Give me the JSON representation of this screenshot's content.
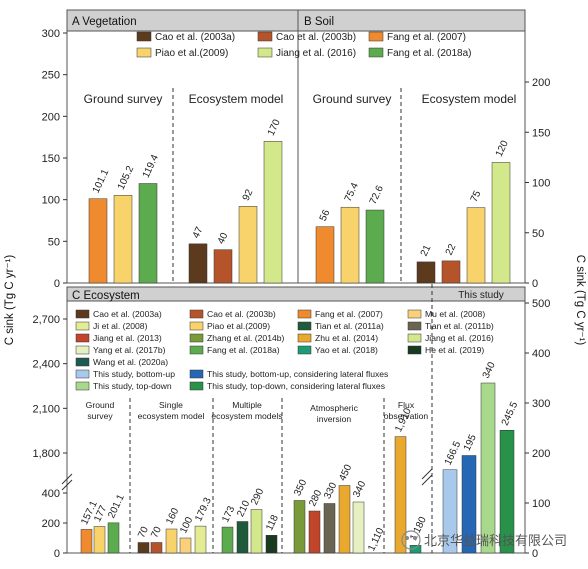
{
  "chart_data": [
    {
      "panel": "A Vegetation",
      "type": "bar",
      "ylabel": "C sink (Tg C yr⁻¹)",
      "ylim": [
        0,
        300
      ],
      "yticks": [
        0,
        50,
        100,
        150,
        200,
        250,
        300
      ],
      "groups": [
        "Ground survey",
        "Ecosystem model"
      ],
      "bars": [
        {
          "group": "Ground survey",
          "series": "Fang et al. (2007)",
          "value": 101.1,
          "label": "101.1"
        },
        {
          "group": "Ground survey",
          "series": "Piao et al.(2009)",
          "value": 105.2,
          "label": "105.2"
        },
        {
          "group": "Ground survey",
          "series": "Fang et al. (2018a)",
          "value": 119.4,
          "label": "119.4"
        },
        {
          "group": "Ecosystem model",
          "series": "Cao et al. (2003a)",
          "value": 47,
          "label": "47"
        },
        {
          "group": "Ecosystem model",
          "series": "Cao et al. (2003b)",
          "value": 40,
          "label": "40"
        },
        {
          "group": "Ecosystem model",
          "series": "Piao et al.(2009)",
          "value": 92,
          "label": "92"
        },
        {
          "group": "Ecosystem model",
          "series": "Jiang et al. (2016)",
          "value": 170,
          "label": "170"
        }
      ]
    },
    {
      "panel": "B Soil",
      "type": "bar",
      "ylabel": "C sink (Tg C yr⁻¹)",
      "ylim": [
        0,
        200
      ],
      "yticks": [
        0,
        50,
        100,
        150,
        200
      ],
      "groups": [
        "Ground survey",
        "Ecosystem model"
      ],
      "bars": [
        {
          "group": "Ground survey",
          "series": "Fang et al. (2007)",
          "value": 56,
          "label": "56"
        },
        {
          "group": "Ground survey",
          "series": "Piao et al.(2009)",
          "value": 75.4,
          "label": "75.4"
        },
        {
          "group": "Ground survey",
          "series": "Fang et al. (2018a)",
          "value": 72.6,
          "label": "72.6"
        },
        {
          "group": "Ecosystem model",
          "series": "Cao et al. (2003a)",
          "value": 21,
          "label": "21"
        },
        {
          "group": "Ecosystem model",
          "series": "Cao et al. (2003b)",
          "value": 22,
          "label": "22"
        },
        {
          "group": "Ecosystem model",
          "series": "Piao et al.(2009)",
          "value": 75,
          "label": "75"
        },
        {
          "group": "Ecosystem model",
          "series": "Jiang et al. (2016)",
          "value": 120,
          "label": "120"
        }
      ]
    },
    {
      "panel": "C Ecosystem",
      "type": "bar",
      "ylabel": "C sink (Tg C yr⁻¹)",
      "yticks_left": [
        0,
        200,
        400,
        1800,
        2100,
        2400,
        2700
      ],
      "yticks_right": [
        0,
        100,
        200,
        300,
        400,
        500
      ],
      "axis_break": [
        500,
        1600
      ],
      "groups": [
        "Ground survey",
        "Single ecosystem model",
        "Multiple ecosystem models",
        "Atmospheric inversion",
        "Flux observation",
        "This study"
      ],
      "bars": [
        {
          "group": "Ground survey",
          "series": "Fang et al. (2007)",
          "value": 157.1,
          "label": "157.1"
        },
        {
          "group": "Ground survey",
          "series": "Piao et al.(2009)",
          "value": 177,
          "label": "177"
        },
        {
          "group": "Ground survey",
          "series": "Fang et al. (2018a)",
          "value": 201.1,
          "label": "201.1"
        },
        {
          "group": "Single ecosystem model",
          "series": "Cao et al. (2003a)",
          "value": 70,
          "label": "70"
        },
        {
          "group": "Single ecosystem model",
          "series": "Cao et al. (2003b)",
          "value": 70,
          "label": "70"
        },
        {
          "group": "Single ecosystem model",
          "series": "Piao et al.(2009)",
          "value": 160,
          "label": "160"
        },
        {
          "group": "Single ecosystem model",
          "series": "Mu et al. (2008)",
          "value": 100,
          "label": "100"
        },
        {
          "group": "Single ecosystem model",
          "series": "Ji et al. (2008)",
          "value": 179.3,
          "label": "179.3"
        },
        {
          "group": "Multiple ecosystem models",
          "series": "Fang et al. (2018a)",
          "value": 173,
          "label": "173"
        },
        {
          "group": "Multiple ecosystem models",
          "series": "Tian et al. (2011a)",
          "value": 210,
          "label": "210"
        },
        {
          "group": "Multiple ecosystem models",
          "series": "Jiang et al. (2016)",
          "value": 290,
          "label": "290"
        },
        {
          "group": "Multiple ecosystem models",
          "series": "He et al. (2019)",
          "value": 118,
          "label": "118"
        },
        {
          "group": "Atmospheric inversion",
          "series": "Zhang et al. (2014b)",
          "value": 350,
          "label": "350"
        },
        {
          "group": "Atmospheric inversion",
          "series": "Jiang et al. (2013)",
          "value": 280,
          "label": "280"
        },
        {
          "group": "Atmospheric inversion",
          "series": "Tian et al. (2011b)",
          "value": 330,
          "label": "330"
        },
        {
          "group": "Atmospheric inversion",
          "series": "Zhu et al. (2014)",
          "value": 450,
          "label": "450"
        },
        {
          "group": "Atmospheric inversion",
          "series": "Yang et al. (2017b)",
          "value": 340,
          "label": "340"
        },
        {
          "group": "Atmospheric inversion",
          "series": "Wang et al. (2020a)",
          "value": 1110,
          "label": "1,110"
        },
        {
          "group": "Flux observation",
          "series": "Yu et al. (2013)",
          "value": 1910,
          "label": "1,910"
        },
        {
          "group": "Flux observation",
          "series": "Yao et al. (2018)",
          "value": 1180,
          "label": "1,180"
        },
        {
          "group": "This study",
          "series": "This study, bottom-up",
          "value": 166.5,
          "label": "166.5"
        },
        {
          "group": "This study",
          "series": "This study, bottom-up, considering lateral fluxes",
          "value": 195,
          "label": "195"
        },
        {
          "group": "This study",
          "series": "This study, top-down",
          "value": 340,
          "label": "340"
        },
        {
          "group": "This study",
          "series": "This study, top-down, considering lateral fluxes",
          "value": 245.5,
          "label": "245.5"
        }
      ]
    }
  ],
  "legend_ab": [
    {
      "label": "Cao et al. (2003a)",
      "color": "#5c3a1e"
    },
    {
      "label": "Cao et al. (2003b)",
      "color": "#b5542b"
    },
    {
      "label": "Fang et al. (2007)",
      "color": "#ef8a2e"
    },
    {
      "label": "Piao et al.(2009)",
      "color": "#f8d26b"
    },
    {
      "label": "Jiang et al. (2016)",
      "color": "#d2e88a"
    },
    {
      "label": "Fang et al. (2018a)",
      "color": "#5cab4e"
    }
  ],
  "legend_c": [
    {
      "label": "Cao et al. (2003a)",
      "color": "#5c3a1e"
    },
    {
      "label": "Cao et al. (2003b)",
      "color": "#b5542b"
    },
    {
      "label": "Fang et al. (2007)",
      "color": "#ef8a2e"
    },
    {
      "label": "Mu et al. (2008)",
      "color": "#fad17a"
    },
    {
      "label": "Ji et al. (2008)",
      "color": "#e3eb93"
    },
    {
      "label": "Piao et al.(2009)",
      "color": "#f8d26b"
    },
    {
      "label": "Tian et al. (2011a)",
      "color": "#1f5a3a"
    },
    {
      "label": "Tian et al. (2011b)",
      "color": "#6a6452"
    },
    {
      "label": "Jiang et al. (2013)",
      "color": "#c1452a"
    },
    {
      "label": "Zhang et al. (2014b)",
      "color": "#7a9a3a"
    },
    {
      "label": "Zhu et al. (2014)",
      "color": "#e9a92e"
    },
    {
      "label": "Jiang et al. (2016)",
      "color": "#d2e88a"
    },
    {
      "label": "Yang et al. (2017b)",
      "color": "#e6f0c0"
    },
    {
      "label": "Fang et al. (2018a)",
      "color": "#5cab4e"
    },
    {
      "label": "Yao et al. (2018)",
      "color": "#1e9a76"
    },
    {
      "label": "He et al. (2019)",
      "color": "#183a1e"
    },
    {
      "label": "Wang et al. (2020a)",
      "color": "#1e5a52"
    },
    {
      "label": "This study, bottom-up",
      "color": "#a9c9ec"
    },
    {
      "label": "This study, bottom-up, considering lateral fluxes",
      "color": "#2567b5"
    },
    {
      "label": "This study, top-down",
      "color": "#a7d88c"
    },
    {
      "label": "This study, top-down, considering lateral fluxes",
      "color": "#28914a"
    }
  ],
  "series_colors": {
    "Yu et al. (2013)": "#e9a92e"
  },
  "watermark": "北京华益瑞科技有限公司"
}
